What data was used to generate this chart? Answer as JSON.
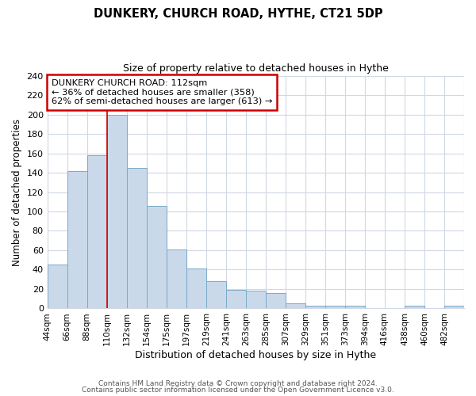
{
  "title": "DUNKERY, CHURCH ROAD, HYTHE, CT21 5DP",
  "subtitle": "Size of property relative to detached houses in Hythe",
  "xlabel": "Distribution of detached houses by size in Hythe",
  "ylabel": "Number of detached properties",
  "bar_color": "#c9d9ea",
  "bar_edge_color": "#7aaac8",
  "bin_labels": [
    "44sqm",
    "66sqm",
    "88sqm",
    "110sqm",
    "132sqm",
    "154sqm",
    "175sqm",
    "197sqm",
    "219sqm",
    "241sqm",
    "263sqm",
    "285sqm",
    "307sqm",
    "329sqm",
    "351sqm",
    "373sqm",
    "394sqm",
    "416sqm",
    "438sqm",
    "460sqm",
    "482sqm"
  ],
  "bar_heights": [
    45,
    142,
    158,
    200,
    145,
    106,
    61,
    41,
    28,
    19,
    18,
    16,
    5,
    3,
    3,
    3,
    0,
    0,
    3,
    0,
    3
  ],
  "ylim": [
    0,
    240
  ],
  "yticks": [
    0,
    20,
    40,
    60,
    80,
    100,
    120,
    140,
    160,
    180,
    200,
    220,
    240
  ],
  "annotation_text_line1": "DUNKERY CHURCH ROAD: 112sqm",
  "annotation_text_line2": "← 36% of detached houses are smaller (358)",
  "annotation_text_line3": "62% of semi-detached houses are larger (613) →",
  "annotation_box_color": "#ffffff",
  "annotation_box_edge_color": "#cc0000",
  "property_line_x": 3.0,
  "background_color": "#ffffff",
  "grid_color": "#d0d8e4",
  "footer_line1": "Contains HM Land Registry data © Crown copyright and database right 2024.",
  "footer_line2": "Contains public sector information licensed under the Open Government Licence v3.0."
}
